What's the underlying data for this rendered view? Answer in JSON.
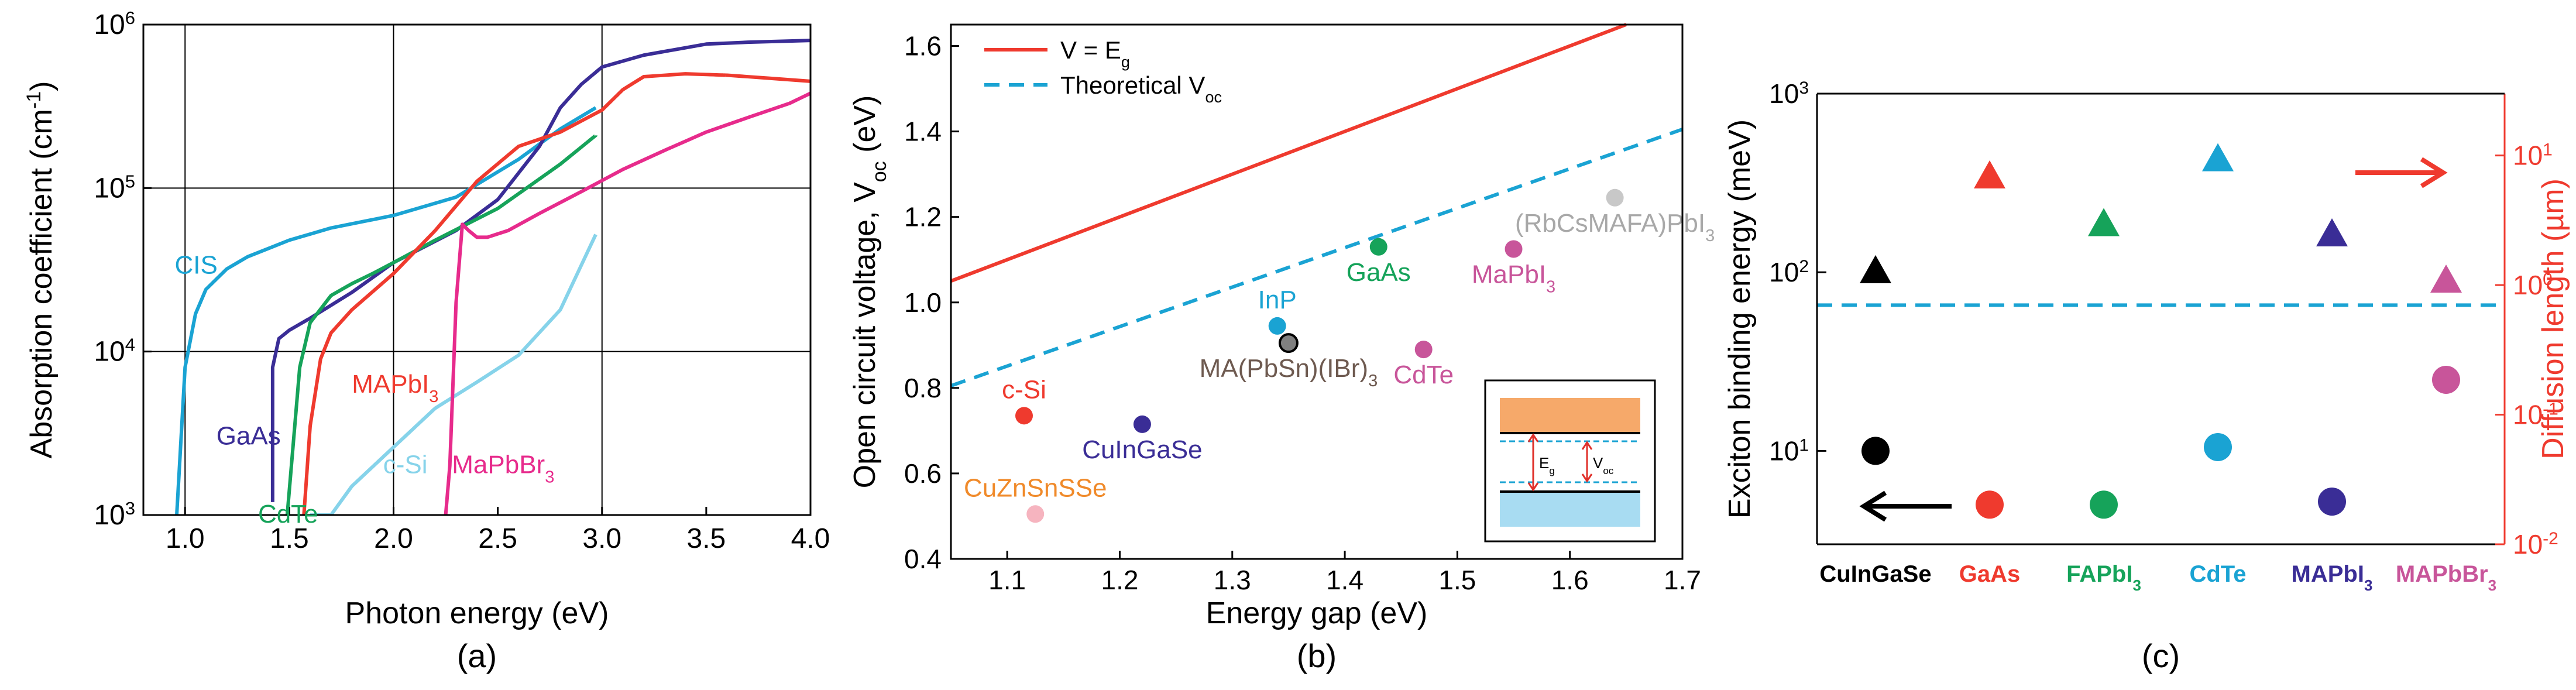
{
  "chart_data": [
    {
      "id": "a",
      "type": "line",
      "panel_label": "(a)",
      "xlabel": "Photon energy (eV)",
      "ylabel": "Absorption coefficient (cm⁻¹)",
      "ylabel_base": "Absorption coefficient (cm",
      "ylabel_sup": "-1",
      "ylabel_end": ")",
      "xlim": [
        0.8,
        4.0
      ],
      "ylim": [
        1000,
        1000000
      ],
      "yscale": "log",
      "grid": true,
      "xticks": [
        {
          "value": 1.0,
          "label": "1.0"
        },
        {
          "value": 1.5,
          "label": "1.5"
        },
        {
          "value": 2.0,
          "label": "2.0"
        },
        {
          "value": 2.5,
          "label": "2.5"
        },
        {
          "value": 3.0,
          "label": "3.0"
        },
        {
          "value": 3.5,
          "label": "3.5"
        },
        {
          "value": 4.0,
          "label": "4.0"
        }
      ],
      "yticks": [
        {
          "value": 1000,
          "base": "10",
          "sup": "3"
        },
        {
          "value": 10000,
          "base": "10",
          "sup": "4"
        },
        {
          "value": 100000,
          "base": "10",
          "sup": "5"
        },
        {
          "value": 1000000,
          "base": "10",
          "sup": "6"
        }
      ],
      "series": [
        {
          "name": "CIS",
          "label": "CIS",
          "color": "#1aa3d3",
          "label_at": [
            0.95,
            30000
          ],
          "x": [
            0.96,
            1.0,
            1.05,
            1.1,
            1.2,
            1.3,
            1.5,
            1.7,
            2.0,
            2.3,
            2.6,
            2.8,
            2.97
          ],
          "y": [
            1000,
            8000,
            17000,
            24000,
            32000,
            38000,
            48000,
            57000,
            68000,
            88000,
            150000,
            230000,
            310000
          ]
        },
        {
          "name": "GaAs",
          "label": "GaAs",
          "color": "#3a2d96",
          "label_at": [
            1.15,
            2700
          ],
          "x": [
            1.42,
            1.42,
            1.45,
            1.5,
            1.6,
            1.8,
            2.0,
            2.3,
            2.5,
            2.7,
            2.8,
            2.9,
            3.0,
            3.2,
            3.5,
            3.7,
            4.0
          ],
          "y": [
            1200,
            8000,
            12000,
            13500,
            16000,
            23000,
            35000,
            55000,
            85000,
            180000,
            310000,
            430000,
            550000,
            650000,
            760000,
            780000,
            800000
          ]
        },
        {
          "name": "CdTe",
          "label": "CdTe",
          "color": "#16a35a",
          "label_at": [
            1.35,
            900
          ],
          "x": [
            1.49,
            1.51,
            1.55,
            1.6,
            1.7,
            1.8,
            1.9,
            2.0,
            2.2,
            2.5,
            2.8,
            2.97
          ],
          "y": [
            650,
            2000,
            8000,
            15000,
            22000,
            26000,
            30000,
            35000,
            48000,
            75000,
            140000,
            210000
          ]
        },
        {
          "name": "MAPbI3",
          "label": "MAPbI",
          "label_sub": "3",
          "color": "#ef3a2e",
          "label_at": [
            1.8,
            5600
          ],
          "x": [
            1.57,
            1.6,
            1.65,
            1.7,
            1.8,
            2.0,
            2.2,
            2.4,
            2.6,
            2.8,
            3.0,
            3.1,
            3.2,
            3.4,
            3.6,
            3.8,
            4.0
          ],
          "y": [
            700,
            3500,
            9000,
            13000,
            18000,
            30000,
            55000,
            110000,
            180000,
            220000,
            300000,
            400000,
            480000,
            500000,
            490000,
            470000,
            450000
          ]
        },
        {
          "name": "c-Si",
          "label": "c-Si",
          "color": "#86d3ea",
          "label_at": [
            1.95,
            1800
          ],
          "x": [
            1.6,
            1.7,
            1.8,
            2.0,
            2.2,
            2.4,
            2.6,
            2.8,
            2.97
          ],
          "y": [
            600,
            1000,
            1500,
            2600,
            4500,
            6500,
            9500,
            18000,
            52000
          ]
        },
        {
          "name": "MaPbBr3",
          "label": "MaPbBr",
          "label_sub": "3",
          "color": "#e72b8c",
          "label_at": [
            2.28,
            1800
          ],
          "x": [
            2.25,
            2.27,
            2.3,
            2.33,
            2.36,
            2.4,
            2.45,
            2.55,
            2.7,
            2.9,
            3.1,
            3.3,
            3.5,
            3.7,
            3.9,
            4.0
          ],
          "y": [
            500,
            2000,
            20000,
            60000,
            55000,
            50000,
            50000,
            55000,
            70000,
            95000,
            130000,
            170000,
            220000,
            270000,
            330000,
            380000
          ]
        }
      ]
    },
    {
      "id": "b",
      "type": "scatter",
      "panel_label": "(b)",
      "xlabel": "Energy gap (eV)",
      "ylabel": "Open circuit voltage, V_oc (eV)",
      "ylabel_base": "Open circuit voltage,  V",
      "ylabel_sub": "oc",
      "ylabel_end": " (eV)",
      "xlim": [
        1.05,
        1.7
      ],
      "ylim": [
        0.4,
        1.65
      ],
      "grid": false,
      "xticks": [
        {
          "value": 1.1,
          "label": "1.1"
        },
        {
          "value": 1.2,
          "label": "1.2"
        },
        {
          "value": 1.3,
          "label": "1.3"
        },
        {
          "value": 1.4,
          "label": "1.4"
        },
        {
          "value": 1.5,
          "label": "1.5"
        },
        {
          "value": 1.6,
          "label": "1.6"
        },
        {
          "value": 1.7,
          "label": "1.7"
        }
      ],
      "yticks": [
        {
          "value": 0.4,
          "label": "0.4"
        },
        {
          "value": 0.6,
          "label": "0.6"
        },
        {
          "value": 0.8,
          "label": "0.8"
        },
        {
          "value": 1.0,
          "label": "1.0"
        },
        {
          "value": 1.2,
          "label": "1.2"
        },
        {
          "value": 1.4,
          "label": "1.4"
        },
        {
          "value": 1.6,
          "label": "1.6"
        }
      ],
      "lines": [
        {
          "name": "V = Eg",
          "label": "V = E",
          "label_sub": "g",
          "color": "#ef3a2e",
          "dashed": false,
          "x": [
            1.05,
            1.65
          ],
          "y": [
            1.05,
            1.65
          ]
        },
        {
          "name": "Theoretical Voc",
          "label": "Theoretical V",
          "label_sub": "oc",
          "color": "#1aa3d3",
          "dashed": true,
          "x": [
            1.05,
            1.7
          ],
          "y": [
            0.805,
            1.405
          ]
        }
      ],
      "points": [
        {
          "name": "c-Si",
          "label": "c-Si",
          "x": 1.115,
          "y": 0.735,
          "color": "#ef3a2e",
          "label_pos": "above"
        },
        {
          "name": "CuZnSnSSe",
          "label": "CuZnSnSSe",
          "x": 1.125,
          "y": 0.505,
          "color": "#f6b4bf",
          "text_color": "#f08a2a",
          "label_pos": "above"
        },
        {
          "name": "CuInGaSe",
          "label": "CuInGaSe",
          "x": 1.22,
          "y": 0.715,
          "color": "#3a2d96",
          "label_pos": "below"
        },
        {
          "name": "InP",
          "label": "InP",
          "x": 1.34,
          "y": 0.945,
          "color": "#1aa3d3",
          "label_pos": "above"
        },
        {
          "name": "MA(PbSn)(IBr)3",
          "label": "MA(PbSn)(IBr)",
          "label_sub": "3",
          "x": 1.35,
          "y": 0.905,
          "color": "#808080",
          "text_color": "#6e5a50",
          "label_pos": "below"
        },
        {
          "name": "GaAs",
          "label": "GaAs",
          "x": 1.43,
          "y": 1.13,
          "color": "#16a35a",
          "label_pos": "below"
        },
        {
          "name": "CdTe",
          "label": "CdTe",
          "x": 1.47,
          "y": 0.89,
          "color": "#c8559a",
          "label_pos": "below"
        },
        {
          "name": "MaPbI3",
          "label": "MaPbI",
          "label_sub": "3",
          "x": 1.55,
          "y": 1.125,
          "color": "#c8559a",
          "label_pos": "below"
        },
        {
          "name": "(RbCsMAFA)PbI3",
          "label": "(RbCsMAFA)PbI",
          "label_sub": "3",
          "x": 1.64,
          "y": 1.245,
          "color": "#c8c8c8",
          "text_color": "#a8a8a8",
          "label_pos": "below"
        }
      ],
      "inset": {
        "label_eg": "E",
        "label_eg_sub": "g",
        "label_voc": "V",
        "label_voc_sub": "oc"
      }
    },
    {
      "id": "c",
      "type": "scatter",
      "panel_label": "(c)",
      "xlabel": "",
      "ylabel": "Exciton binding energy (meV)",
      "ylabel_right": "Diffusion length (µm)",
      "yscale": "log",
      "ylim": [
        3,
        1000
      ],
      "ylim_right": [
        0.01,
        30
      ],
      "left_axis_color": "#000000",
      "right_axis_color": "#ef3a2e",
      "yticks": [
        {
          "value": 10,
          "base": "10",
          "sup": "1"
        },
        {
          "value": 100,
          "base": "10",
          "sup": "2"
        },
        {
          "value": 1000,
          "base": "10",
          "sup": "3"
        }
      ],
      "yticks_right": [
        {
          "value": 0.01,
          "base": "10",
          "sup": "-2"
        },
        {
          "value": 0.1,
          "base": "10",
          "sup": "-1"
        },
        {
          "value": 1,
          "base": "10",
          "sup": "0"
        },
        {
          "value": 10,
          "base": "10",
          "sup": "1"
        }
      ],
      "categories": [
        {
          "name": "CuInGaSe",
          "label": "CuInGaSe",
          "color": "#000000"
        },
        {
          "name": "GaAs",
          "label": "GaAs",
          "color": "#ef3a2e"
        },
        {
          "name": "FAPbI3",
          "label": "FAPbI",
          "label_sub": "3",
          "color": "#16a35a"
        },
        {
          "name": "CdTe",
          "label": "CdTe",
          "color": "#1aa3d3"
        },
        {
          "name": "MAPbI3",
          "label": "MAPbI",
          "label_sub": "3",
          "color": "#3a2d96"
        },
        {
          "name": "MAPbBr3",
          "label": "MAPbBr",
          "label_sub": "3",
          "color": "#c8559a"
        }
      ],
      "series": [
        {
          "name": "Exciton binding energy",
          "axis": "left",
          "marker": "circle",
          "values": [
            10,
            5,
            5,
            10.5,
            5.2,
            25
          ]
        },
        {
          "name": "Diffusion length",
          "axis": "right",
          "marker": "triangle",
          "values": [
            1.3,
            7,
            3,
            9.5,
            2.5,
            1.1
          ]
        }
      ],
      "hline": {
        "value": 0.7,
        "axis": "right",
        "color": "#1aa3d3",
        "dashed": true
      }
    }
  ]
}
